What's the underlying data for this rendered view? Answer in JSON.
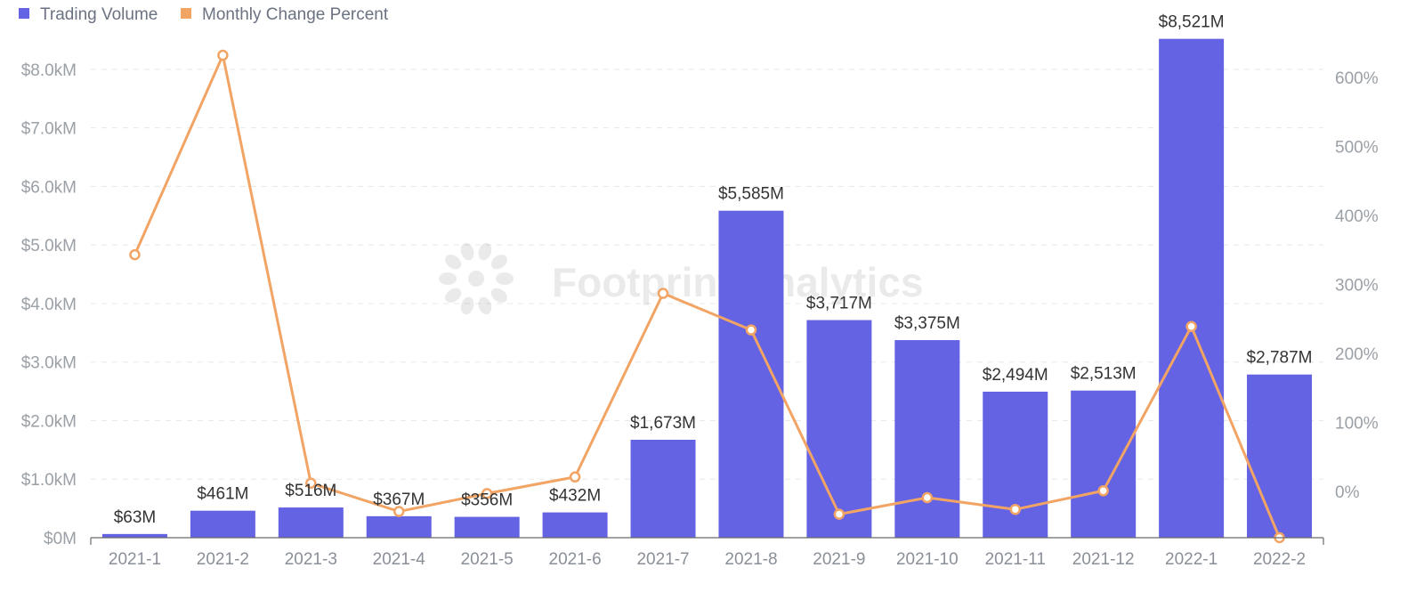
{
  "chart_data": {
    "type": "bar",
    "categories": [
      "2021-1",
      "2021-2",
      "2021-3",
      "2021-4",
      "2021-5",
      "2021-6",
      "2021-7",
      "2021-8",
      "2021-9",
      "2021-10",
      "2021-11",
      "2021-12",
      "2022-1",
      "2022-2"
    ],
    "series": [
      {
        "name": "Trading Volume",
        "type": "bar",
        "axis": "left",
        "color": "#6463e3",
        "values": [
          63,
          461,
          516,
          367,
          356,
          432,
          1673,
          5585,
          3717,
          3375,
          2494,
          2513,
          8521,
          2787
        ],
        "labels": [
          "$63M",
          "$461M",
          "$516M",
          "$367M",
          "$356M",
          "$432M",
          "$1,673M",
          "$5,585M",
          "$3,717M",
          "$3,375M",
          "$2,494M",
          "$2,513M",
          "$8,521M",
          "$2,787M"
        ]
      },
      {
        "name": "Monthly Change Percent",
        "type": "line",
        "axis": "right",
        "color": "#f2a465",
        "values": [
          343,
          632,
          12,
          -29,
          -3,
          21,
          287,
          234,
          -33,
          -9,
          -26,
          1,
          239,
          -67
        ]
      }
    ],
    "y_left": {
      "ylim": [
        0,
        8500
      ],
      "ticks": [
        0,
        1000,
        2000,
        3000,
        4000,
        5000,
        6000,
        7000,
        8000
      ],
      "tick_labels": [
        "$0M",
        "$1.0kM",
        "$2.0kM",
        "$3.0kM",
        "$4.0kM",
        "$5.0kM",
        "$6.0kM",
        "$7.0kM",
        "$8.0kM"
      ]
    },
    "y_right": {
      "ylim": [
        -67,
        654
      ],
      "ticks": [
        0,
        100,
        200,
        300,
        400,
        500,
        600
      ],
      "tick_labels": [
        "0%",
        "100%",
        "200%",
        "300%",
        "400%",
        "500%",
        "600%"
      ]
    },
    "legend_position": "top-left",
    "grid": "dashed horizontal",
    "watermark": "Footprint Analytics"
  }
}
